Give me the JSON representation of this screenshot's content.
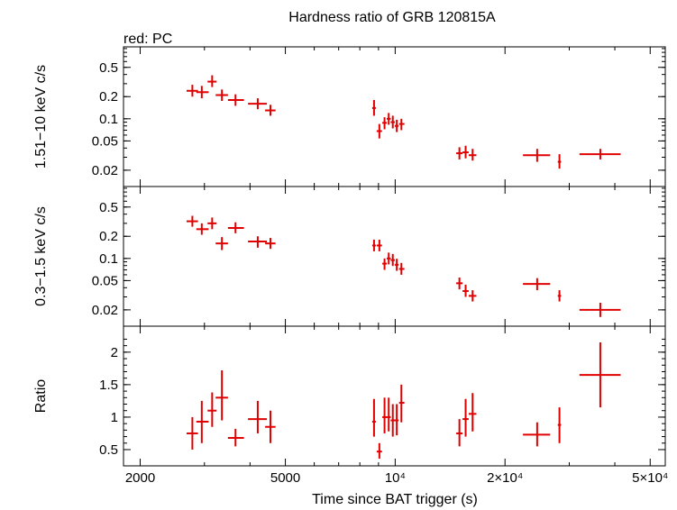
{
  "chart_data": {
    "type": "scatter",
    "title": "Hardness ratio of GRB 120815A",
    "subtitle": "red: PC",
    "xlabel": "Time since BAT trigger (s)",
    "xscale": "log",
    "xlim": [
      1800,
      55000
    ],
    "x_ticks": [
      {
        "value": 2000,
        "label": "2000"
      },
      {
        "value": 5000,
        "label": "5000"
      },
      {
        "value": 10000,
        "label": "10⁴"
      },
      {
        "value": 20000,
        "label": "2×10⁴"
      },
      {
        "value": 50000,
        "label": "5×10⁴"
      }
    ],
    "series_color": "#e00000",
    "panels": [
      {
        "id": "hard",
        "ylabel": "1.51−10 keV c/s",
        "yscale": "log",
        "ylim": [
          0.012,
          0.95
        ],
        "y_ticks": [
          {
            "value": 0.5,
            "label": "0.5"
          },
          {
            "value": 0.2,
            "label": "0.2"
          },
          {
            "value": 0.1,
            "label": "0.1"
          },
          {
            "value": 0.05,
            "label": "0.05"
          },
          {
            "value": 0.02,
            "label": "0.02"
          }
        ],
        "points": [
          {
            "x": 2780,
            "xlo": 2680,
            "xhi": 2880,
            "y": 0.24,
            "ylo": 0.2,
            "yhi": 0.29
          },
          {
            "x": 2950,
            "xlo": 2850,
            "xhi": 3080,
            "y": 0.23,
            "ylo": 0.19,
            "yhi": 0.28
          },
          {
            "x": 3150,
            "xlo": 3060,
            "xhi": 3240,
            "y": 0.32,
            "ylo": 0.27,
            "yhi": 0.39
          },
          {
            "x": 3350,
            "xlo": 3220,
            "xhi": 3480,
            "y": 0.21,
            "ylo": 0.175,
            "yhi": 0.25
          },
          {
            "x": 3650,
            "xlo": 3480,
            "xhi": 3850,
            "y": 0.18,
            "ylo": 0.15,
            "yhi": 0.215
          },
          {
            "x": 4200,
            "xlo": 3950,
            "xhi": 4450,
            "y": 0.16,
            "ylo": 0.135,
            "yhi": 0.19
          },
          {
            "x": 4550,
            "xlo": 4400,
            "xhi": 4700,
            "y": 0.13,
            "ylo": 0.11,
            "yhi": 0.155
          },
          {
            "x": 8750,
            "xlo": 8650,
            "xhi": 8850,
            "y": 0.14,
            "ylo": 0.11,
            "yhi": 0.18
          },
          {
            "x": 9050,
            "xlo": 8900,
            "xhi": 9200,
            "y": 0.068,
            "ylo": 0.054,
            "yhi": 0.085
          },
          {
            "x": 9350,
            "xlo": 9220,
            "xhi": 9480,
            "y": 0.088,
            "ylo": 0.072,
            "yhi": 0.105
          },
          {
            "x": 9600,
            "xlo": 9480,
            "xhi": 9720,
            "y": 0.1,
            "ylo": 0.083,
            "yhi": 0.12
          },
          {
            "x": 9850,
            "xlo": 9720,
            "xhi": 9980,
            "y": 0.09,
            "ylo": 0.074,
            "yhi": 0.11
          },
          {
            "x": 10100,
            "xlo": 9980,
            "xhi": 10220,
            "y": 0.08,
            "ylo": 0.066,
            "yhi": 0.097
          },
          {
            "x": 10400,
            "xlo": 10250,
            "xhi": 10600,
            "y": 0.085,
            "ylo": 0.07,
            "yhi": 0.1
          },
          {
            "x": 15000,
            "xlo": 14700,
            "xhi": 15300,
            "y": 0.034,
            "ylo": 0.028,
            "yhi": 0.041
          },
          {
            "x": 15600,
            "xlo": 15300,
            "xhi": 15900,
            "y": 0.035,
            "ylo": 0.029,
            "yhi": 0.043
          },
          {
            "x": 16300,
            "xlo": 15900,
            "xhi": 16700,
            "y": 0.032,
            "ylo": 0.027,
            "yhi": 0.039
          },
          {
            "x": 24500,
            "xlo": 22400,
            "xhi": 26600,
            "y": 0.032,
            "ylo": 0.026,
            "yhi": 0.039
          },
          {
            "x": 28200,
            "xlo": 27900,
            "xhi": 28500,
            "y": 0.026,
            "ylo": 0.021,
            "yhi": 0.033
          },
          {
            "x": 36500,
            "xlo": 32000,
            "xhi": 41500,
            "y": 0.033,
            "ylo": 0.028,
            "yhi": 0.039
          }
        ]
      },
      {
        "id": "soft",
        "ylabel": "0.3−1.5 keV c/s",
        "yscale": "log",
        "ylim": [
          0.012,
          0.95
        ],
        "y_ticks": [
          {
            "value": 0.5,
            "label": "0.5"
          },
          {
            "value": 0.2,
            "label": "0.2"
          },
          {
            "value": 0.1,
            "label": "0.1"
          },
          {
            "value": 0.05,
            "label": "0.05"
          },
          {
            "value": 0.02,
            "label": "0.02"
          }
        ],
        "points": [
          {
            "x": 2780,
            "xlo": 2680,
            "xhi": 2880,
            "y": 0.32,
            "ylo": 0.27,
            "yhi": 0.38
          },
          {
            "x": 2950,
            "xlo": 2850,
            "xhi": 3080,
            "y": 0.25,
            "ylo": 0.21,
            "yhi": 0.3
          },
          {
            "x": 3150,
            "xlo": 3060,
            "xhi": 3240,
            "y": 0.3,
            "ylo": 0.25,
            "yhi": 0.36
          },
          {
            "x": 3350,
            "xlo": 3220,
            "xhi": 3480,
            "y": 0.16,
            "ylo": 0.13,
            "yhi": 0.195
          },
          {
            "x": 3650,
            "xlo": 3480,
            "xhi": 3850,
            "y": 0.26,
            "ylo": 0.22,
            "yhi": 0.31
          },
          {
            "x": 4200,
            "xlo": 3950,
            "xhi": 4450,
            "y": 0.17,
            "ylo": 0.14,
            "yhi": 0.2
          },
          {
            "x": 4550,
            "xlo": 4400,
            "xhi": 4700,
            "y": 0.16,
            "ylo": 0.135,
            "yhi": 0.19
          },
          {
            "x": 8750,
            "xlo": 8650,
            "xhi": 8850,
            "y": 0.15,
            "ylo": 0.125,
            "yhi": 0.18
          },
          {
            "x": 9050,
            "xlo": 8900,
            "xhi": 9200,
            "y": 0.15,
            "ylo": 0.125,
            "yhi": 0.18
          },
          {
            "x": 9350,
            "xlo": 9220,
            "xhi": 9480,
            "y": 0.085,
            "ylo": 0.07,
            "yhi": 0.1
          },
          {
            "x": 9600,
            "xlo": 9480,
            "xhi": 9720,
            "y": 0.1,
            "ylo": 0.083,
            "yhi": 0.12
          },
          {
            "x": 9850,
            "xlo": 9720,
            "xhi": 9980,
            "y": 0.095,
            "ylo": 0.079,
            "yhi": 0.115
          },
          {
            "x": 10100,
            "xlo": 9980,
            "xhi": 10220,
            "y": 0.082,
            "ylo": 0.068,
            "yhi": 0.099
          },
          {
            "x": 10400,
            "xlo": 10250,
            "xhi": 10600,
            "y": 0.072,
            "ylo": 0.06,
            "yhi": 0.087
          },
          {
            "x": 15000,
            "xlo": 14700,
            "xhi": 15300,
            "y": 0.046,
            "ylo": 0.038,
            "yhi": 0.055
          },
          {
            "x": 15600,
            "xlo": 15300,
            "xhi": 15900,
            "y": 0.036,
            "ylo": 0.03,
            "yhi": 0.044
          },
          {
            "x": 16300,
            "xlo": 15900,
            "xhi": 16700,
            "y": 0.031,
            "ylo": 0.026,
            "yhi": 0.037
          },
          {
            "x": 24500,
            "xlo": 22400,
            "xhi": 26600,
            "y": 0.045,
            "ylo": 0.037,
            "yhi": 0.054
          },
          {
            "x": 28200,
            "xlo": 27900,
            "xhi": 28500,
            "y": 0.031,
            "ylo": 0.026,
            "yhi": 0.037
          },
          {
            "x": 36500,
            "xlo": 32000,
            "xhi": 41500,
            "y": 0.02,
            "ylo": 0.016,
            "yhi": 0.025
          }
        ]
      },
      {
        "id": "ratio",
        "ylabel": "Ratio",
        "yscale": "linear",
        "ylim": [
          0.25,
          2.4
        ],
        "y_ticks": [
          {
            "value": 2,
            "label": "2"
          },
          {
            "value": 1.5,
            "label": "1.5"
          },
          {
            "value": 1,
            "label": "1"
          },
          {
            "value": 0.5,
            "label": "0.5"
          }
        ],
        "points": [
          {
            "x": 2780,
            "xlo": 2680,
            "xhi": 2880,
            "y": 0.75,
            "ylo": 0.5,
            "yhi": 1.0
          },
          {
            "x": 2950,
            "xlo": 2850,
            "xhi": 3080,
            "y": 0.93,
            "ylo": 0.6,
            "yhi": 1.25
          },
          {
            "x": 3150,
            "xlo": 3060,
            "xhi": 3240,
            "y": 1.1,
            "ylo": 0.85,
            "yhi": 1.38
          },
          {
            "x": 3350,
            "xlo": 3220,
            "xhi": 3480,
            "y": 1.3,
            "ylo": 0.95,
            "yhi": 1.72
          },
          {
            "x": 3650,
            "xlo": 3480,
            "xhi": 3850,
            "y": 0.68,
            "ylo": 0.55,
            "yhi": 0.82
          },
          {
            "x": 4200,
            "xlo": 3950,
            "xhi": 4450,
            "y": 0.97,
            "ylo": 0.75,
            "yhi": 1.25
          },
          {
            "x": 4550,
            "xlo": 4400,
            "xhi": 4700,
            "y": 0.85,
            "ylo": 0.6,
            "yhi": 1.1
          },
          {
            "x": 8750,
            "xlo": 8650,
            "xhi": 8850,
            "y": 0.93,
            "ylo": 0.7,
            "yhi": 1.28
          },
          {
            "x": 9050,
            "xlo": 8900,
            "xhi": 9200,
            "y": 0.47,
            "ylo": 0.36,
            "yhi": 0.6
          },
          {
            "x": 9350,
            "xlo": 9220,
            "xhi": 9480,
            "y": 1.0,
            "ylo": 0.75,
            "yhi": 1.3
          },
          {
            "x": 9600,
            "xlo": 9480,
            "xhi": 9720,
            "y": 1.0,
            "ylo": 0.78,
            "yhi": 1.3
          },
          {
            "x": 9850,
            "xlo": 9720,
            "xhi": 9980,
            "y": 0.95,
            "ylo": 0.7,
            "yhi": 1.2
          },
          {
            "x": 10100,
            "xlo": 9980,
            "xhi": 10220,
            "y": 0.95,
            "ylo": 0.72,
            "yhi": 1.2
          },
          {
            "x": 10400,
            "xlo": 10250,
            "xhi": 10600,
            "y": 1.22,
            "ylo": 0.92,
            "yhi": 1.5
          },
          {
            "x": 15000,
            "xlo": 14700,
            "xhi": 15300,
            "y": 0.75,
            "ylo": 0.55,
            "yhi": 0.97
          },
          {
            "x": 15600,
            "xlo": 15300,
            "xhi": 15900,
            "y": 0.97,
            "ylo": 0.7,
            "yhi": 1.28
          },
          {
            "x": 16300,
            "xlo": 15900,
            "xhi": 16700,
            "y": 1.05,
            "ylo": 0.78,
            "yhi": 1.37
          },
          {
            "x": 24500,
            "xlo": 22400,
            "xhi": 26600,
            "y": 0.73,
            "ylo": 0.55,
            "yhi": 0.92
          },
          {
            "x": 28200,
            "xlo": 27900,
            "xhi": 28500,
            "y": 0.88,
            "ylo": 0.6,
            "yhi": 1.15
          },
          {
            "x": 36500,
            "xlo": 32000,
            "xhi": 41500,
            "y": 1.65,
            "ylo": 1.15,
            "yhi": 2.15
          }
        ]
      }
    ]
  }
}
